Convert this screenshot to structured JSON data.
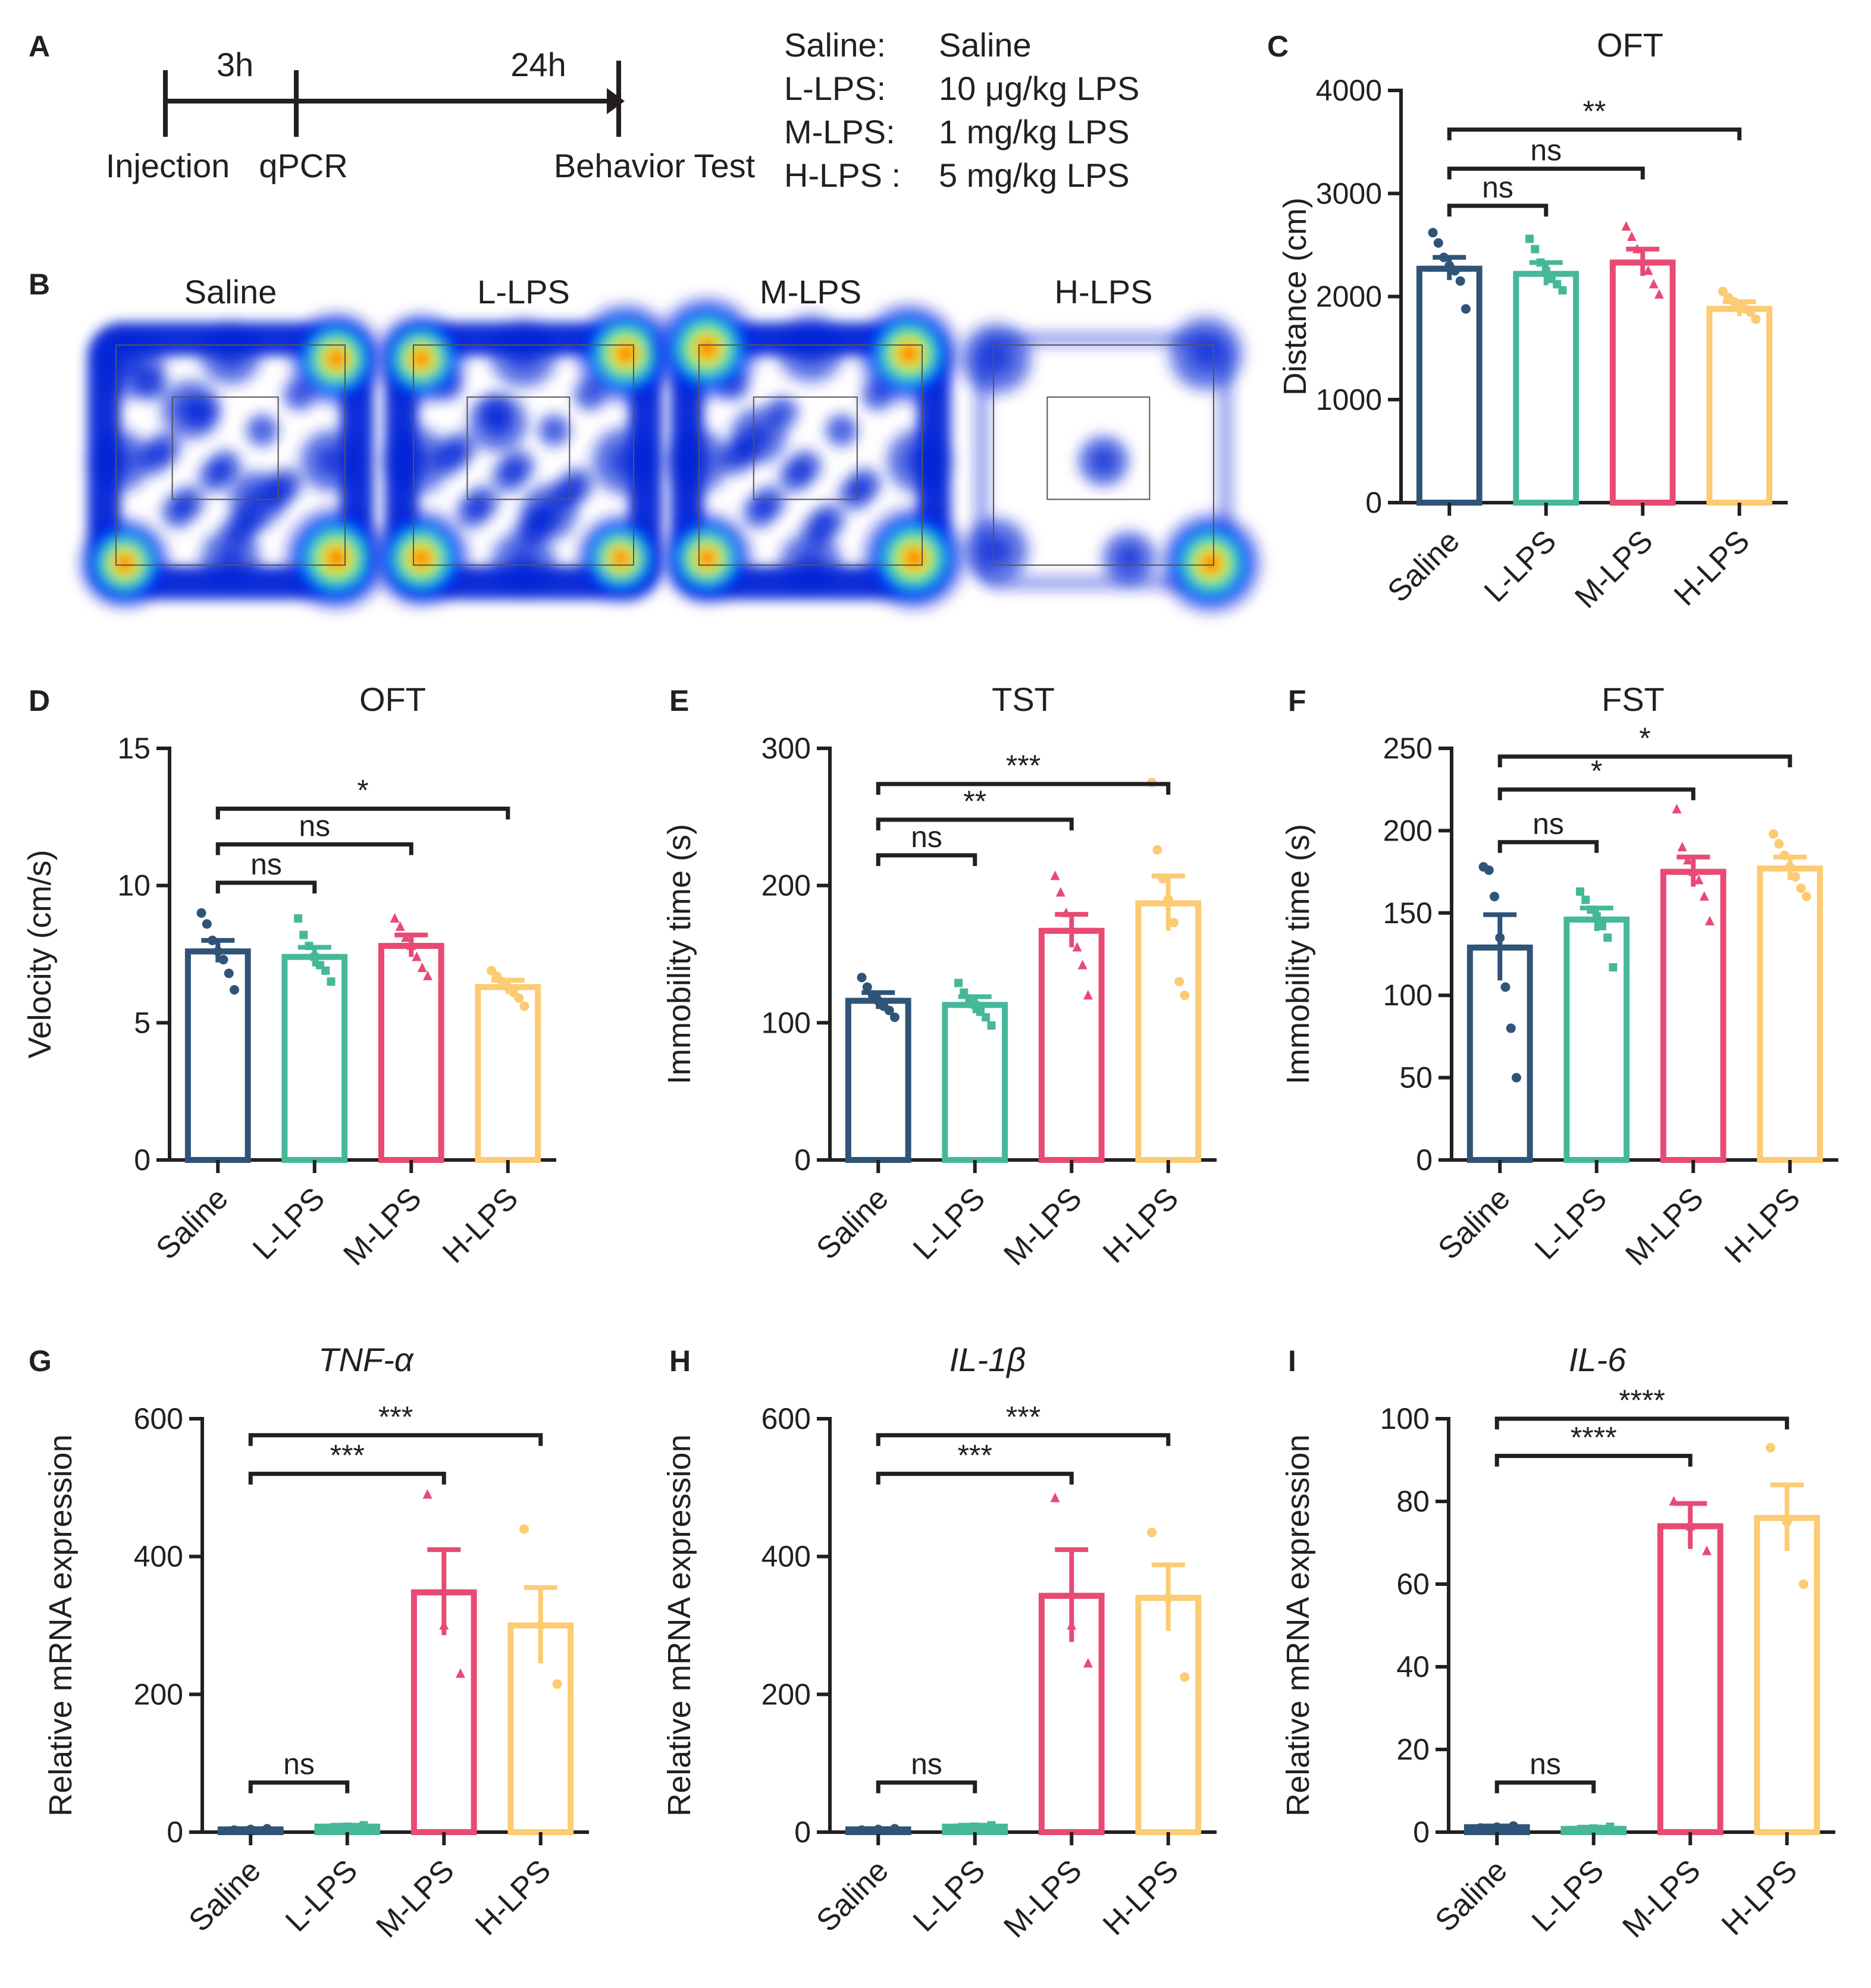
{
  "colors": {
    "Saline": "#2f5478",
    "L-LPS": "#46b89a",
    "M-LPS": "#e84a74",
    "H-LPS": "#fccb72",
    "axis": "#231f20"
  },
  "panelA": {
    "letter": "A",
    "interval1": "3h",
    "interval2": "24h",
    "labels": {
      "injection": "Injection",
      "qpcr": "qPCR",
      "behavior": "Behavior Test"
    },
    "legend": [
      {
        "group": "Saline:",
        "dose": "Saline"
      },
      {
        "group": "L-LPS:",
        "dose": "10 μg/kg LPS"
      },
      {
        "group": "M-LPS:",
        "dose": "1 mg/kg LPS"
      },
      {
        "group": "H-LPS :",
        "dose": "5 mg/kg LPS"
      }
    ]
  },
  "panelB": {
    "letter": "B",
    "heatmaps": [
      {
        "title": "Saline",
        "hotspots": [
          {
            "u": 0.12,
            "v": 0.12,
            "i": 0.55
          },
          {
            "u": 0.9,
            "v": 0.1,
            "i": 0.85
          },
          {
            "u": 0.1,
            "v": 0.9,
            "i": 0.8
          },
          {
            "u": 0.9,
            "v": 0.88,
            "i": 1.0
          },
          {
            "u": 0.5,
            "v": 0.08,
            "i": 0.4
          },
          {
            "u": 0.08,
            "v": 0.5,
            "i": 0.4
          },
          {
            "u": 0.5,
            "v": 0.88,
            "i": 0.35
          },
          {
            "u": 0.88,
            "v": 0.5,
            "i": 0.4
          },
          {
            "u": 0.35,
            "v": 0.3,
            "i": 0.35
          },
          {
            "u": 0.6,
            "v": 0.65,
            "i": 0.3
          }
        ]
      },
      {
        "title": "L-LPS",
        "hotspots": [
          {
            "u": 0.1,
            "v": 0.1,
            "i": 0.8
          },
          {
            "u": 0.9,
            "v": 0.08,
            "i": 0.95
          },
          {
            "u": 0.1,
            "v": 0.88,
            "i": 0.9
          },
          {
            "u": 0.88,
            "v": 0.88,
            "i": 0.75
          },
          {
            "u": 0.5,
            "v": 0.08,
            "i": 0.5
          },
          {
            "u": 0.08,
            "v": 0.5,
            "i": 0.5
          },
          {
            "u": 0.5,
            "v": 0.9,
            "i": 0.45
          },
          {
            "u": 0.9,
            "v": 0.5,
            "i": 0.5
          },
          {
            "u": 0.4,
            "v": 0.35,
            "i": 0.35
          },
          {
            "u": 0.6,
            "v": 0.7,
            "i": 0.3
          }
        ]
      },
      {
        "title": "M-LPS",
        "hotspots": [
          {
            "u": 0.1,
            "v": 0.06,
            "i": 1.0
          },
          {
            "u": 0.88,
            "v": 0.08,
            "i": 0.95
          },
          {
            "u": 0.1,
            "v": 0.88,
            "i": 0.8
          },
          {
            "u": 0.9,
            "v": 0.88,
            "i": 1.0
          },
          {
            "u": 0.5,
            "v": 0.06,
            "i": 0.5
          },
          {
            "u": 0.06,
            "v": 0.5,
            "i": 0.45
          },
          {
            "u": 0.5,
            "v": 0.9,
            "i": 0.4
          },
          {
            "u": 0.92,
            "v": 0.5,
            "i": 0.45
          },
          {
            "u": 0.3,
            "v": 0.4,
            "i": 0.3
          }
        ]
      },
      {
        "title": "H-LPS",
        "hotspots": [
          {
            "u": 0.08,
            "v": 0.1,
            "i": 0.55
          },
          {
            "u": 0.9,
            "v": 0.08,
            "i": 0.6
          },
          {
            "u": 0.08,
            "v": 0.85,
            "i": 0.45
          },
          {
            "u": 0.92,
            "v": 0.9,
            "i": 0.95
          },
          {
            "u": 0.5,
            "v": 0.5,
            "i": 0.2
          },
          {
            "u": 0.6,
            "v": 0.88,
            "i": 0.25
          }
        ]
      }
    ]
  },
  "chart_data": [
    {
      "panel": "C",
      "type": "bar",
      "title": "OFT",
      "title_italic": false,
      "ylabel": "Distance (cm)",
      "ylim": [
        0,
        4000
      ],
      "yticks": [
        0,
        1000,
        2000,
        3000,
        4000
      ],
      "categories": [
        "Saline",
        "L-LPS",
        "M-LPS",
        "H-LPS"
      ],
      "values": [
        2270,
        2220,
        2330,
        1880
      ],
      "sem": [
        110,
        110,
        130,
        70
      ],
      "points": [
        [
          2620,
          2520,
          2380,
          2300,
          2250,
          2150,
          1880
        ],
        [
          2560,
          2460,
          2330,
          2250,
          2170,
          2120,
          2060
        ],
        [
          2680,
          2580,
          2460,
          2340,
          2250,
          2120,
          2020
        ],
        [
          2050,
          1990,
          1950,
          1920,
          1880,
          1850,
          1780
        ]
      ],
      "comparisons": [
        {
          "from": 0,
          "to": 1,
          "y": 2880,
          "label": "ns"
        },
        {
          "from": 0,
          "to": 2,
          "y": 3240,
          "label": "ns"
        },
        {
          "from": 0,
          "to": 3,
          "y": 3620,
          "label": "**"
        }
      ]
    },
    {
      "panel": "D",
      "type": "bar",
      "title": "OFT",
      "title_italic": false,
      "ylabel": "Velocity (cm/s)",
      "ylim": [
        0,
        15
      ],
      "yticks": [
        0,
        5,
        10,
        15
      ],
      "categories": [
        "Saline",
        "L-LPS",
        "M-LPS",
        "H-LPS"
      ],
      "values": [
        7.6,
        7.4,
        7.8,
        6.3
      ],
      "sem": [
        0.4,
        0.35,
        0.4,
        0.25
      ],
      "points": [
        [
          9.0,
          8.6,
          8.0,
          7.6,
          7.3,
          6.8,
          6.2
        ],
        [
          8.8,
          8.2,
          7.8,
          7.4,
          7.1,
          6.9,
          6.5
        ],
        [
          8.8,
          8.5,
          8.1,
          7.8,
          7.4,
          7.0,
          6.7
        ],
        [
          6.9,
          6.7,
          6.5,
          6.3,
          6.1,
          5.9,
          5.6
        ]
      ],
      "comparisons": [
        {
          "from": 0,
          "to": 1,
          "y": 10.1,
          "label": "ns"
        },
        {
          "from": 0,
          "to": 2,
          "y": 11.5,
          "label": "ns"
        },
        {
          "from": 0,
          "to": 3,
          "y": 12.8,
          "label": "*"
        }
      ]
    },
    {
      "panel": "E",
      "type": "bar",
      "title": "TST",
      "title_italic": false,
      "ylabel": "Immobility time (s)",
      "ylim": [
        0,
        300
      ],
      "yticks": [
        0,
        100,
        200,
        300
      ],
      "categories": [
        "Saline",
        "L-LPS",
        "M-LPS",
        "H-LPS"
      ],
      "values": [
        116,
        113,
        167,
        187
      ],
      "sem": [
        6,
        6,
        12,
        20
      ],
      "points": [
        [
          133,
          126,
          120,
          116,
          112,
          109,
          104
        ],
        [
          129,
          122,
          117,
          113,
          108,
          104,
          98
        ],
        [
          207,
          195,
          180,
          168,
          155,
          142,
          120
        ],
        [
          275,
          226,
          205,
          190,
          173,
          130,
          120
        ]
      ],
      "comparisons": [
        {
          "from": 0,
          "to": 1,
          "y": 222,
          "label": "ns"
        },
        {
          "from": 0,
          "to": 2,
          "y": 248,
          "label": "**"
        },
        {
          "from": 0,
          "to": 3,
          "y": 274,
          "label": "***"
        }
      ]
    },
    {
      "panel": "F",
      "type": "bar",
      "title": "FST",
      "title_italic": false,
      "ylabel": "Immobility time (s)",
      "ylim": [
        0,
        250
      ],
      "yticks": [
        0,
        50,
        100,
        150,
        200,
        250
      ],
      "categories": [
        "Saline",
        "L-LPS",
        "M-LPS",
        "H-LPS"
      ],
      "values": [
        129,
        146,
        175,
        177
      ],
      "sem": [
        20,
        7,
        9,
        7
      ],
      "points": [
        [
          178,
          176,
          160,
          135,
          105,
          80,
          50
        ],
        [
          163,
          158,
          152,
          148,
          142,
          135,
          117
        ],
        [
          213,
          190,
          182,
          175,
          170,
          160,
          145
        ],
        [
          198,
          192,
          185,
          178,
          172,
          165,
          160
        ]
      ],
      "comparisons": [
        {
          "from": 0,
          "to": 1,
          "y": 193,
          "label": "ns"
        },
        {
          "from": 0,
          "to": 2,
          "y": 225,
          "label": "*"
        },
        {
          "from": 0,
          "to": 3,
          "y": 245,
          "label": "*"
        }
      ]
    },
    {
      "panel": "G",
      "type": "bar",
      "title": "TNF-α",
      "title_italic": true,
      "ylabel": "Relative mRNA expression",
      "ylim": [
        0,
        600
      ],
      "yticks": [
        0,
        200,
        400,
        600
      ],
      "categories": [
        "Saline",
        "L-LPS",
        "M-LPS",
        "H-LPS"
      ],
      "values": [
        4,
        8,
        348,
        300
      ],
      "sem": [
        1,
        2,
        62,
        55
      ],
      "points": [
        [
          3,
          4,
          5
        ],
        [
          6,
          8,
          10
        ],
        [
          490,
          300,
          230
        ],
        [
          440,
          300,
          215
        ]
      ],
      "comparisons": [
        {
          "from": 0,
          "to": 1,
          "y": 72,
          "label": "ns"
        },
        {
          "from": 0,
          "to": 2,
          "y": 520,
          "label": "***"
        },
        {
          "from": 0,
          "to": 3,
          "y": 576,
          "label": "***"
        }
      ]
    },
    {
      "panel": "H",
      "type": "bar",
      "title": "IL-1β",
      "title_italic": true,
      "ylabel": "Relative mRNA expression",
      "ylim": [
        0,
        600
      ],
      "yticks": [
        0,
        200,
        400,
        600
      ],
      "categories": [
        "Saline",
        "L-LPS",
        "M-LPS",
        "H-LPS"
      ],
      "values": [
        4,
        8,
        343,
        340
      ],
      "sem": [
        1,
        2,
        67,
        48
      ],
      "points": [
        [
          3,
          4,
          5
        ],
        [
          6,
          8,
          10
        ],
        [
          485,
          300,
          245
        ],
        [
          435,
          340,
          225
        ]
      ],
      "comparisons": [
        {
          "from": 0,
          "to": 1,
          "y": 72,
          "label": "ns"
        },
        {
          "from": 0,
          "to": 2,
          "y": 520,
          "label": "***"
        },
        {
          "from": 0,
          "to": 3,
          "y": 576,
          "label": "***"
        }
      ]
    },
    {
      "panel": "I",
      "type": "bar",
      "title": "IL-6",
      "title_italic": true,
      "ylabel": "Relative mRNA expression",
      "ylim": [
        0,
        100
      ],
      "yticks": [
        0,
        20,
        40,
        60,
        80,
        100
      ],
      "categories": [
        "Saline",
        "L-LPS",
        "M-LPS",
        "H-LPS"
      ],
      "values": [
        1.2,
        0.8,
        74,
        76
      ],
      "sem": [
        0.3,
        0.4,
        5.5,
        8
      ],
      "points": [
        [
          1.0,
          1.2,
          1.5
        ],
        [
          0.5,
          0.9,
          1.3
        ],
        [
          80,
          74,
          68
        ],
        [
          93,
          75,
          60
        ]
      ],
      "comparisons": [
        {
          "from": 0,
          "to": 1,
          "y": 12,
          "label": "ns"
        },
        {
          "from": 0,
          "to": 2,
          "y": 91,
          "label": "****"
        },
        {
          "from": 0,
          "to": 3,
          "y": 100,
          "label": "****"
        }
      ]
    }
  ]
}
